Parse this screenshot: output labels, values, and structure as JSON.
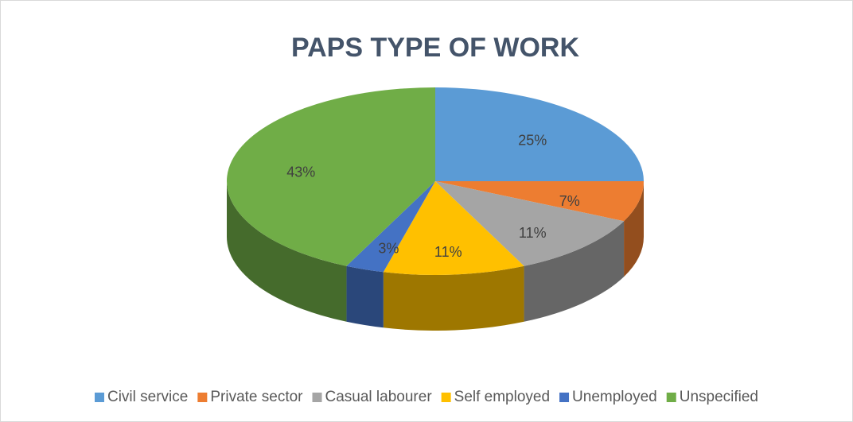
{
  "chart_data": {
    "type": "pie",
    "title": "PAPS TYPE OF WORK",
    "categories": [
      "Civil service",
      "Private sector",
      "Casual labourer",
      "Self employed",
      "Unemployed",
      "Unspecified"
    ],
    "values": [
      25,
      7,
      11,
      11,
      3,
      43
    ],
    "value_labels": [
      "25%",
      "7%",
      "11%",
      "11%",
      "3%",
      "43%"
    ],
    "colors": [
      "#5b9bd5",
      "#ed7d31",
      "#a5a5a5",
      "#ffc000",
      "#4472c4",
      "#70ad47"
    ],
    "legend": "bottom"
  }
}
